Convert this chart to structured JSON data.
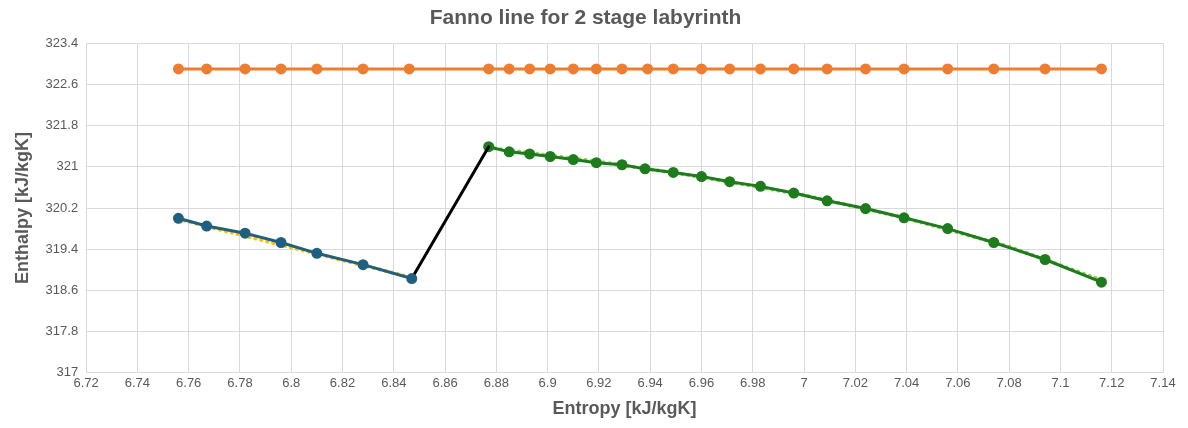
{
  "chart_data": {
    "type": "line",
    "title": "Fanno line for 2 stage labyrinth",
    "xlabel": "Entropy [kJ/kgK]",
    "ylabel": "Enthalpy [kJ/kgK]",
    "xlim": [
      6.72,
      7.14
    ],
    "xticks": [
      6.72,
      6.74,
      6.76,
      6.78,
      6.8,
      6.82,
      6.84,
      6.86,
      6.88,
      6.9,
      6.92,
      6.94,
      6.96,
      6.98,
      7,
      7.02,
      7.04,
      7.06,
      7.08,
      7.1,
      7.12,
      7.14
    ],
    "ylim": [
      317,
      323.4
    ],
    "yticks": [
      317,
      317.8,
      318.6,
      319.4,
      320.2,
      321,
      321.8,
      322.6,
      323.4
    ],
    "grid": true,
    "legend": false,
    "marker": "circle",
    "line_style": "solid",
    "series": [
      {
        "color": "#ed7d31",
        "x": [
          6.756,
          6.767,
          6.782,
          6.796,
          6.81,
          6.828,
          6.846,
          6.877,
          6.885,
          6.893,
          6.901,
          6.91,
          6.919,
          6.929,
          6.939,
          6.949,
          6.96,
          6.971,
          6.983,
          6.996,
          7.009,
          7.024,
          7.039,
          7.056,
          7.074,
          7.094,
          7.116
        ],
        "values": [
          322.9,
          322.9,
          322.9,
          322.9,
          322.9,
          322.9,
          322.9,
          322.9,
          322.9,
          322.9,
          322.9,
          322.9,
          322.9,
          322.9,
          322.9,
          322.9,
          322.9,
          322.9,
          322.9,
          322.9,
          322.9,
          322.9,
          322.9,
          322.9,
          322.9,
          322.9,
          322.9
        ]
      },
      {
        "color": "#1f5f7f",
        "x": [
          6.756,
          6.767,
          6.782,
          6.796,
          6.81,
          6.828,
          6.847
        ],
        "values": [
          320.0,
          319.85,
          319.71,
          319.53,
          319.32,
          319.1,
          318.83
        ]
      },
      {
        "color": "#ffc000",
        "marker": "none",
        "line_style": "dotted",
        "x": [
          6.756,
          6.847
        ],
        "values": [
          319.98,
          318.85
        ]
      },
      {
        "color": "#000000",
        "marker": "none",
        "x": [
          6.847,
          6.877
        ],
        "values": [
          318.83,
          321.39
        ]
      },
      {
        "color": "#1e7b1e",
        "x": [
          6.877,
          6.885,
          6.893,
          6.901,
          6.91,
          6.919,
          6.929,
          6.938,
          6.949,
          6.96,
          6.971,
          6.983,
          6.996,
          7.009,
          7.024,
          7.039,
          7.056,
          7.074,
          7.094,
          7.116
        ],
        "values": [
          321.39,
          321.29,
          321.25,
          321.2,
          321.14,
          321.08,
          321.04,
          320.96,
          320.89,
          320.81,
          320.71,
          320.62,
          320.49,
          320.34,
          320.19,
          320.01,
          319.8,
          319.53,
          319.2,
          318.76
        ]
      },
      {
        "color": "#92d050",
        "marker": "none",
        "line_style": "dotted",
        "x": [
          6.877,
          6.92,
          6.96,
          7.0,
          7.04,
          7.08,
          7.116
        ],
        "values": [
          321.37,
          321.1,
          320.8,
          320.45,
          320.0,
          319.45,
          318.8
        ]
      }
    ]
  }
}
